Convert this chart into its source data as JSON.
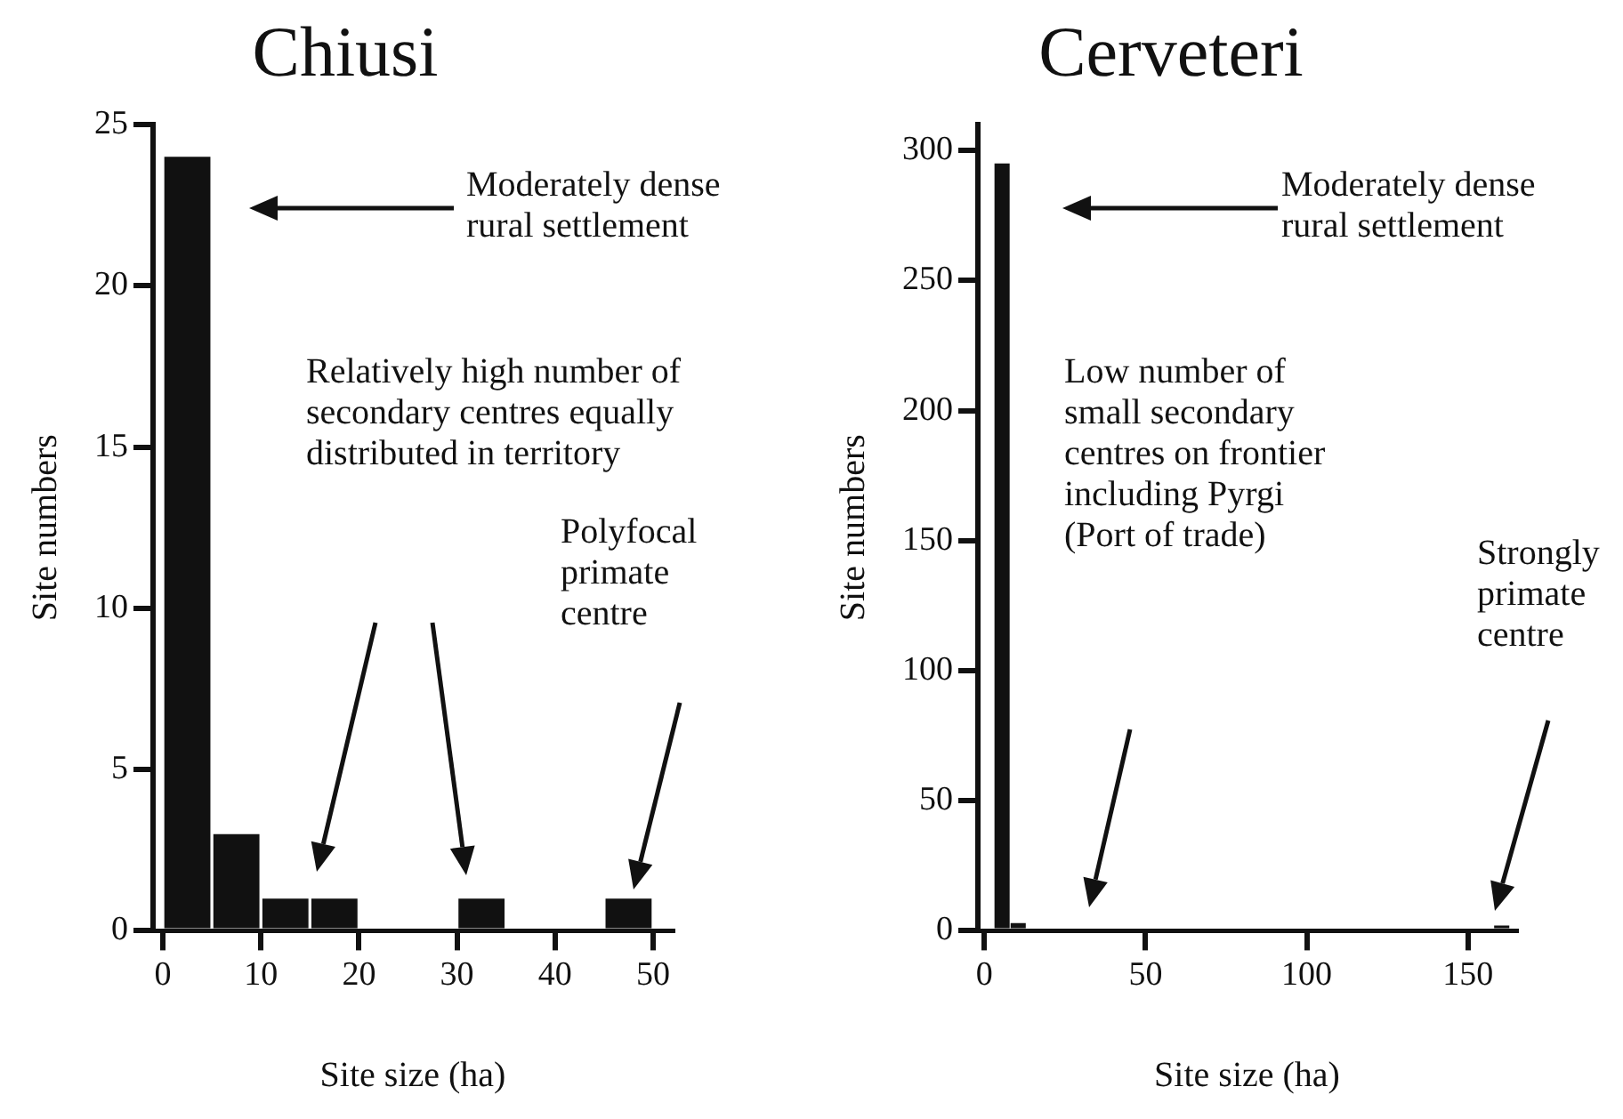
{
  "chart_data": [
    {
      "type": "histogram",
      "title": "Chiusi",
      "xlabel": "Site size (ha)",
      "ylabel": "Site numbers",
      "bins": [
        0,
        5,
        10,
        15,
        20,
        25,
        30,
        35,
        40,
        45,
        50
      ],
      "values": [
        24,
        3,
        1,
        1,
        0,
        0,
        1,
        0,
        0,
        1
      ],
      "color": "#111111",
      "xlim": [
        -1,
        52
      ],
      "xticks": [
        0,
        10,
        20,
        30,
        40,
        50
      ],
      "ylim": [
        0,
        25
      ],
      "yticks": [
        0,
        5,
        10,
        15,
        20,
        25
      ],
      "grid": false,
      "legend": false,
      "annotations": [
        "Moderately dense rural settlement",
        "Relatively high  number of secondary centres equally distributed in territory",
        "Polyfocal primate centre"
      ]
    },
    {
      "type": "histogram",
      "title": "Cerveteri",
      "xlabel": "Site size (ha)",
      "ylabel": "Site numbers",
      "bins": [
        3,
        8,
        13,
        18,
        23,
        28,
        33,
        38,
        43,
        48,
        53,
        58,
        63,
        68,
        73,
        78,
        83,
        88,
        93,
        98,
        103,
        108,
        113,
        118,
        123,
        128,
        133,
        138,
        143,
        148,
        153,
        158,
        163
      ],
      "values": [
        295,
        3,
        0,
        0,
        0,
        0,
        0,
        0,
        0,
        0,
        0,
        0,
        0,
        0,
        0,
        0,
        0,
        0,
        0,
        0,
        0,
        0,
        0,
        0,
        0,
        0,
        0,
        0,
        0,
        0,
        0,
        2
      ],
      "color": "#111111",
      "xlim": [
        -2,
        165
      ],
      "xticks": [
        0,
        50,
        100,
        150
      ],
      "ylim": [
        0,
        310
      ],
      "yticks": [
        0,
        50,
        100,
        150,
        200,
        250,
        300
      ],
      "grid": false,
      "legend": false,
      "annotations": [
        "Moderately dense rural settlement",
        "Low  number of small secondary centres on frontier including Pyrgi (Port of trade)",
        "Strongly primate centre"
      ]
    }
  ]
}
